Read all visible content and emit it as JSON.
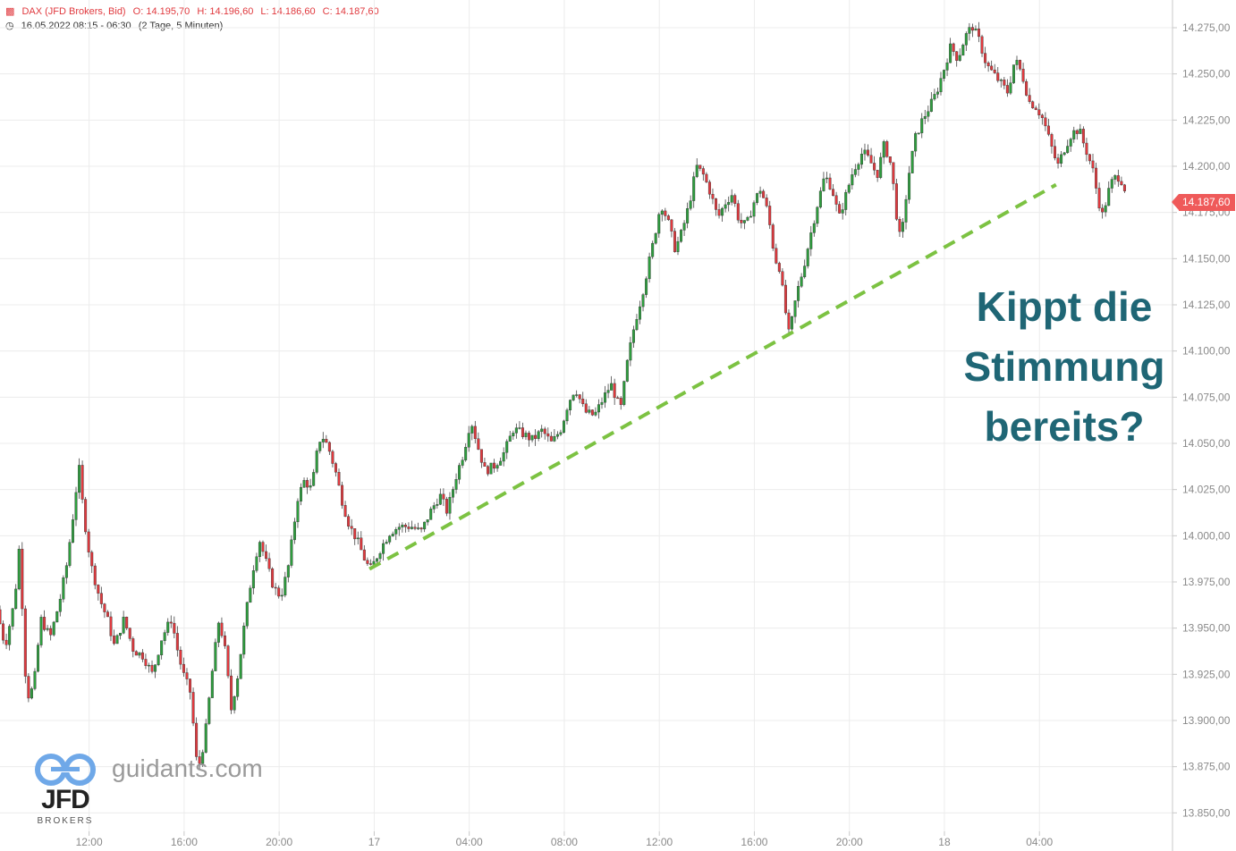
{
  "header": {
    "instrument": "DAX (JFD Brokers, Bid)",
    "open": "O: 14.195,70",
    "high": "H: 14.196,60",
    "low": "L: 14.186,60",
    "close": "C: 14.187,60",
    "period": "16.05.2022 08:15 - 06:30",
    "interval": "(2 Tage, 5 Minuten)"
  },
  "watermark": "guidants.com",
  "brand": {
    "name": "JFD",
    "sub": "BROKERS"
  },
  "annotation": {
    "lines": [
      "Kippt die",
      "Stimmung",
      "bereits?"
    ]
  },
  "last_price_label": "14.187,60",
  "colors": {
    "up": "#2e9e3e",
    "down": "#e0393e",
    "trendline": "#7cc242",
    "annotation": "#1f6675",
    "grid": "#ececec"
  },
  "chart_data": {
    "type": "candlestick",
    "title": "",
    "y_axis": {
      "min": 13840,
      "max": 14290,
      "ticks": [
        13850,
        13875,
        13900,
        13925,
        13950,
        13975,
        14000,
        14025,
        14050,
        14075,
        14100,
        14125,
        14150,
        14175,
        14200,
        14225,
        14250,
        14275
      ],
      "tick_labels": [
        "13.850,00",
        "13.875,00",
        "13.900,00",
        "13.925,00",
        "13.950,00",
        "13.975,00",
        "14.000,00",
        "14.025,00",
        "14.050,00",
        "14.075,00",
        "14.100,00",
        "14.125,00",
        "14.150,00",
        "14.175,00",
        "14.200,00",
        "14.225,00",
        "14.250,00",
        "14.275,00"
      ]
    },
    "x_axis": {
      "tick_labels": [
        "12:00",
        "16:00",
        "20:00",
        "17",
        "04:00",
        "08:00",
        "12:00",
        "16:00",
        "20:00",
        "18",
        "04:00"
      ],
      "tick_hours": [
        12,
        16,
        20,
        24,
        28,
        32,
        36,
        40,
        44,
        48,
        52
      ],
      "start_hour": 8.25,
      "end_hour": 54.5,
      "view_end_hour": 57.6
    },
    "trendline": {
      "from": {
        "hour": 23.8,
        "price": 13982
      },
      "to": {
        "hour": 52.7,
        "price": 14190
      }
    },
    "last_price": 14187.6,
    "price_path": [
      [
        8.25,
        13960
      ],
      [
        8.6,
        13940
      ],
      [
        9.0,
        13965
      ],
      [
        9.2,
        13995
      ],
      [
        9.5,
        13912
      ],
      [
        9.8,
        13918
      ],
      [
        10.1,
        13955
      ],
      [
        10.5,
        13945
      ],
      [
        10.9,
        13965
      ],
      [
        11.2,
        13985
      ],
      [
        11.5,
        14015
      ],
      [
        11.7,
        14038
      ],
      [
        11.9,
        14012
      ],
      [
        12.2,
        13985
      ],
      [
        12.6,
        13965
      ],
      [
        12.9,
        13955
      ],
      [
        13.2,
        13940
      ],
      [
        13.6,
        13955
      ],
      [
        14.0,
        13938
      ],
      [
        14.4,
        13935
      ],
      [
        14.8,
        13925
      ],
      [
        15.2,
        13945
      ],
      [
        15.6,
        13955
      ],
      [
        15.9,
        13935
      ],
      [
        16.1,
        13925
      ],
      [
        16.4,
        13915
      ],
      [
        16.7,
        13872
      ],
      [
        17.0,
        13890
      ],
      [
        17.3,
        13925
      ],
      [
        17.6,
        13955
      ],
      [
        17.9,
        13935
      ],
      [
        18.1,
        13905
      ],
      [
        18.4,
        13925
      ],
      [
        18.7,
        13955
      ],
      [
        19.0,
        13980
      ],
      [
        19.3,
        13998
      ],
      [
        19.6,
        13985
      ],
      [
        19.9,
        13972
      ],
      [
        20.2,
        13967
      ],
      [
        20.5,
        13982
      ],
      [
        20.7,
        14000
      ],
      [
        20.9,
        14020
      ],
      [
        21.2,
        14030
      ],
      [
        21.5,
        14025
      ],
      [
        21.7,
        14043
      ],
      [
        21.9,
        14055
      ],
      [
        22.2,
        14048
      ],
      [
        22.5,
        14035
      ],
      [
        22.8,
        14018
      ],
      [
        23.1,
        14005
      ],
      [
        23.4,
        13998
      ],
      [
        23.8,
        13985
      ],
      [
        24.0,
        13982
      ],
      [
        24.4,
        13993
      ],
      [
        24.8,
        14002
      ],
      [
        25.2,
        14005
      ],
      [
        25.7,
        14005
      ],
      [
        26.1,
        14002
      ],
      [
        26.5,
        14013
      ],
      [
        26.9,
        14022
      ],
      [
        27.2,
        14013
      ],
      [
        27.6,
        14033
      ],
      [
        27.9,
        14045
      ],
      [
        28.2,
        14063
      ],
      [
        28.5,
        14048
      ],
      [
        28.8,
        14035
      ],
      [
        29.2,
        14038
      ],
      [
        29.6,
        14045
      ],
      [
        30.0,
        14058
      ],
      [
        30.4,
        14055
      ],
      [
        30.8,
        14052
      ],
      [
        31.2,
        14057
      ],
      [
        31.6,
        14050
      ],
      [
        32.0,
        14058
      ],
      [
        32.3,
        14072
      ],
      [
        32.6,
        14080
      ],
      [
        33.0,
        14067
      ],
      [
        33.4,
        14065
      ],
      [
        33.8,
        14075
      ],
      [
        34.1,
        14082
      ],
      [
        34.5,
        14068
      ],
      [
        34.8,
        14095
      ],
      [
        35.1,
        14115
      ],
      [
        35.4,
        14130
      ],
      [
        35.7,
        14148
      ],
      [
        35.9,
        14160
      ],
      [
        36.2,
        14180
      ],
      [
        36.5,
        14170
      ],
      [
        36.8,
        14155
      ],
      [
        37.1,
        14165
      ],
      [
        37.4,
        14180
      ],
      [
        37.7,
        14200
      ],
      [
        38.0,
        14195
      ],
      [
        38.3,
        14185
      ],
      [
        38.6,
        14172
      ],
      [
        38.9,
        14180
      ],
      [
        39.2,
        14185
      ],
      [
        39.5,
        14170
      ],
      [
        39.8,
        14168
      ],
      [
        40.1,
        14180
      ],
      [
        40.4,
        14188
      ],
      [
        40.7,
        14175
      ],
      [
        41.0,
        14150
      ],
      [
        41.2,
        14145
      ],
      [
        41.4,
        14125
      ],
      [
        41.6,
        14108
      ],
      [
        41.9,
        14130
      ],
      [
        42.2,
        14145
      ],
      [
        42.5,
        14163
      ],
      [
        42.8,
        14180
      ],
      [
        43.1,
        14195
      ],
      [
        43.4,
        14188
      ],
      [
        43.7,
        14172
      ],
      [
        44.0,
        14185
      ],
      [
        44.3,
        14198
      ],
      [
        44.7,
        14208
      ],
      [
        45.0,
        14203
      ],
      [
        45.3,
        14195
      ],
      [
        45.6,
        14212
      ],
      [
        45.9,
        14200
      ],
      [
        46.1,
        14175
      ],
      [
        46.3,
        14158
      ],
      [
        46.6,
        14193
      ],
      [
        46.9,
        14215
      ],
      [
        47.2,
        14225
      ],
      [
        47.5,
        14232
      ],
      [
        47.8,
        14240
      ],
      [
        48.1,
        14252
      ],
      [
        48.4,
        14265
      ],
      [
        48.7,
        14258
      ],
      [
        49.0,
        14270
      ],
      [
        49.3,
        14276
      ],
      [
        49.6,
        14268
      ],
      [
        49.9,
        14255
      ],
      [
        50.2,
        14250
      ],
      [
        50.5,
        14245
      ],
      [
        50.8,
        14240
      ],
      [
        51.1,
        14258
      ],
      [
        51.4,
        14250
      ],
      [
        51.7,
        14235
      ],
      [
        52.0,
        14232
      ],
      [
        52.3,
        14225
      ],
      [
        52.6,
        14212
      ],
      [
        52.9,
        14200
      ],
      [
        53.2,
        14210
      ],
      [
        53.5,
        14218
      ],
      [
        53.8,
        14220
      ],
      [
        54.0,
        14212
      ],
      [
        54.2,
        14205
      ],
      [
        54.4,
        14197
      ],
      [
        54.6,
        14182
      ],
      [
        54.8,
        14173
      ],
      [
        55.0,
        14185
      ],
      [
        55.2,
        14192
      ],
      [
        55.4,
        14195
      ],
      [
        55.6,
        14192
      ],
      [
        55.7,
        14188
      ]
    ]
  }
}
